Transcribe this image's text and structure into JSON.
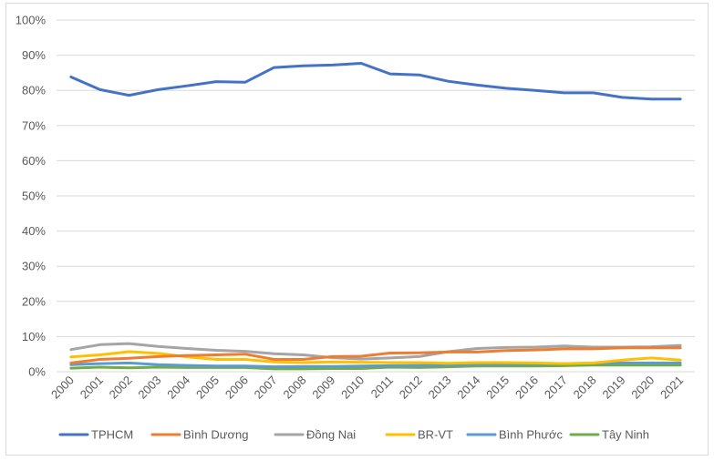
{
  "chart_data": {
    "type": "line",
    "title": "",
    "xlabel": "",
    "ylabel": "",
    "ylim": [
      0,
      1
    ],
    "ytick_labels": [
      "0%",
      "10%",
      "20%",
      "30%",
      "40%",
      "50%",
      "60%",
      "70%",
      "80%",
      "90%",
      "100%"
    ],
    "grid": "horizontal",
    "legend_position": "bottom",
    "categories": [
      "2000",
      "2001",
      "2002",
      "2003",
      "2004",
      "2005",
      "2006",
      "2007",
      "2008",
      "2009",
      "2010",
      "2011",
      "2012",
      "2013",
      "2014",
      "2015",
      "2016",
      "2017",
      "2018",
      "2019",
      "2020",
      "2021"
    ],
    "series": [
      {
        "name": "TPHCM",
        "color": "#4472C4",
        "values": [
          0.838,
          0.802,
          0.786,
          0.802,
          0.813,
          0.825,
          0.823,
          0.865,
          0.87,
          0.872,
          0.877,
          0.847,
          0.844,
          0.826,
          0.815,
          0.806,
          0.8,
          0.793,
          0.793,
          0.78,
          0.775,
          0.775
        ]
      },
      {
        "name": "Bình Dương",
        "color": "#ED7D31",
        "values": [
          0.025,
          0.035,
          0.038,
          0.043,
          0.046,
          0.048,
          0.05,
          0.035,
          0.035,
          0.043,
          0.044,
          0.053,
          0.054,
          0.056,
          0.056,
          0.06,
          0.062,
          0.065,
          0.065,
          0.068,
          0.068,
          0.068
        ]
      },
      {
        "name": "Đồng Nai",
        "color": "#A5A5A5",
        "values": [
          0.063,
          0.077,
          0.08,
          0.072,
          0.066,
          0.061,
          0.058,
          0.051,
          0.048,
          0.04,
          0.036,
          0.039,
          0.043,
          0.057,
          0.066,
          0.069,
          0.07,
          0.073,
          0.07,
          0.07,
          0.071,
          0.075
        ]
      },
      {
        "name": "BR-VT",
        "color": "#FFC000",
        "values": [
          0.042,
          0.048,
          0.057,
          0.052,
          0.042,
          0.035,
          0.035,
          0.028,
          0.026,
          0.028,
          0.027,
          0.026,
          0.026,
          0.024,
          0.026,
          0.026,
          0.025,
          0.023,
          0.025,
          0.033,
          0.039,
          0.033
        ]
      },
      {
        "name": "Bình Phước",
        "color": "#5B9BD5",
        "values": [
          0.02,
          0.023,
          0.025,
          0.02,
          0.018,
          0.016,
          0.016,
          0.014,
          0.015,
          0.015,
          0.016,
          0.017,
          0.018,
          0.019,
          0.021,
          0.021,
          0.022,
          0.023,
          0.024,
          0.025,
          0.025,
          0.025
        ]
      },
      {
        "name": "Tây Ninh",
        "color": "#70AD47",
        "values": [
          0.01,
          0.013,
          0.011,
          0.013,
          0.012,
          0.012,
          0.012,
          0.008,
          0.008,
          0.009,
          0.009,
          0.013,
          0.012,
          0.014,
          0.016,
          0.016,
          0.016,
          0.017,
          0.019,
          0.019,
          0.019,
          0.019
        ]
      }
    ]
  }
}
